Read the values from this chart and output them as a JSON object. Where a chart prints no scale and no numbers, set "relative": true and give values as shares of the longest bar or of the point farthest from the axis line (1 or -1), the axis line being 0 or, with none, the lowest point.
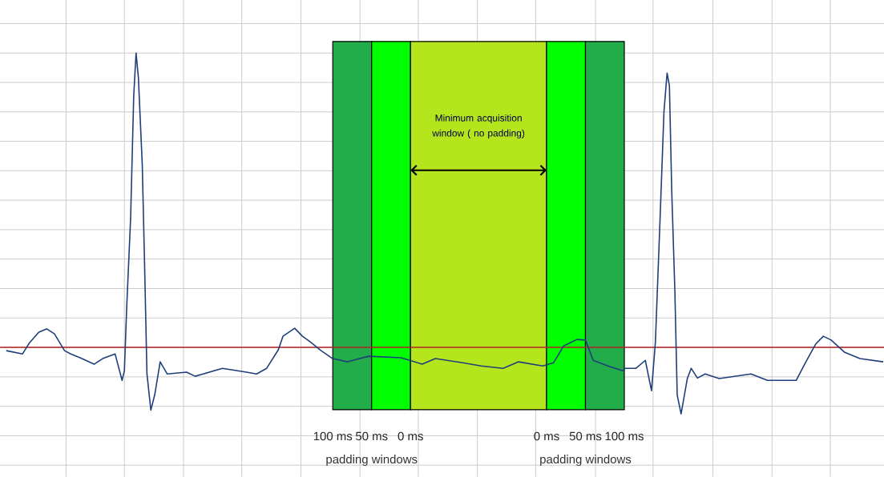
{
  "chart_data": {
    "type": "line",
    "relative": true,
    "grid": true,
    "tick_labels": "x",
    "xlim": [
      -703,
      434
    ],
    "xticks": [
      {
        "value": -618,
        "label": null
      },
      {
        "value": -543,
        "label": null
      },
      {
        "value": -467,
        "label": null
      },
      {
        "value": -392,
        "label": null
      },
      {
        "value": -316,
        "label": null
      },
      {
        "value": -240,
        "label": null
      },
      {
        "value": -165,
        "label": null
      },
      {
        "value": -89,
        "label": null
      },
      {
        "value": -14,
        "label": null
      },
      {
        "value": 63,
        "label": null
      },
      {
        "value": 137,
        "label": null
      },
      {
        "value": 214,
        "label": null
      },
      {
        "value": 290,
        "label": null
      },
      {
        "value": 365,
        "label": null
      },
      {
        "value": 0,
        "label": "0 ms"
      },
      {
        "value": 50,
        "label": "50 ms"
      },
      {
        "value": 100,
        "label": "100 ms"
      }
    ],
    "x2lim": [
      528,
      -609
    ],
    "x2ticks": [
      {
        "value": 100,
        "label": "100 ms"
      },
      {
        "value": 50,
        "label": "50 ms"
      },
      {
        "value": 0,
        "label": "0 ms"
      }
    ],
    "bands": [
      {
        "axis": "x",
        "from": -275,
        "to": -225,
        "color": "#22ad4a"
      },
      {
        "axis": "x",
        "from": -225,
        "to": -175,
        "color": "#00ff00"
      },
      {
        "axis": "x",
        "from": -175,
        "to": 0,
        "color": "#b5e61d"
      },
      {
        "axis": "x",
        "from": 0,
        "to": 50,
        "color": "#00ff00"
      },
      {
        "axis": "x",
        "from": 50,
        "to": 100,
        "color": "#22ad4a"
      }
    ],
    "ref_lines": [
      {
        "axis": "y",
        "value": 0,
        "color": "#b22222"
      }
    ],
    "annotations": [
      "Minimum acquisition window ( no padding)",
      "padding windows",
      "padding windows"
    ],
    "series": [
      {
        "color": "#1e3f7a",
        "x": [
          -695,
          -674,
          -665,
          -653,
          -643,
          -633,
          -620,
          -612,
          -600,
          -582,
          -571,
          -555,
          -546,
          -543,
          -540,
          -535,
          -531,
          -528,
          -525,
          -520,
          -517,
          -514,
          -509,
          -504,
          -497,
          -488,
          -463,
          -452,
          -417,
          -386,
          -373,
          -360,
          -345,
          -339,
          -324,
          -314,
          -304,
          -290,
          -277,
          -275,
          -256,
          -229,
          -187,
          -160,
          -143,
          -108,
          -84,
          -56,
          -36,
          -5,
          9,
          22,
          39,
          50,
          60,
          81,
          98,
          101,
          115,
          127,
          135,
          140,
          146,
          151,
          155,
          158,
          161,
          165,
          168,
          173,
          181,
          186,
          194,
          204,
          222,
          263,
          284,
          321,
          333,
          346,
          356,
          366,
          383,
          403,
          433
        ],
        "values": [
          -0.011,
          -0.022,
          0.016,
          0.052,
          0.063,
          0.046,
          -0.011,
          -0.022,
          -0.035,
          -0.057,
          -0.038,
          -0.022,
          -0.112,
          -0.079,
          0.139,
          0.439,
          0.856,
          1,
          0.916,
          0.619,
          0.275,
          -0.09,
          -0.213,
          -0.161,
          -0.049,
          -0.09,
          -0.084,
          -0.098,
          -0.071,
          -0.084,
          -0.09,
          -0.071,
          -0.008,
          0.038,
          0.065,
          0.038,
          0.019,
          -0.011,
          -0.035,
          -0.038,
          -0.049,
          -0.03,
          -0.035,
          -0.057,
          -0.038,
          -0.052,
          -0.063,
          -0.071,
          -0.049,
          -0.063,
          -0.052,
          0.005,
          0.027,
          0.025,
          -0.044,
          -0.065,
          -0.079,
          -0.071,
          -0.071,
          -0.044,
          -0.147,
          0.019,
          0.439,
          0.801,
          0.932,
          0.888,
          0.529,
          0.193,
          -0.161,
          -0.226,
          -0.106,
          -0.071,
          -0.104,
          -0.09,
          -0.106,
          -0.09,
          -0.112,
          -0.112,
          -0.052,
          0.011,
          0.038,
          0.025,
          -0.016,
          -0.038,
          -0.049
        ]
      }
    ]
  }
}
